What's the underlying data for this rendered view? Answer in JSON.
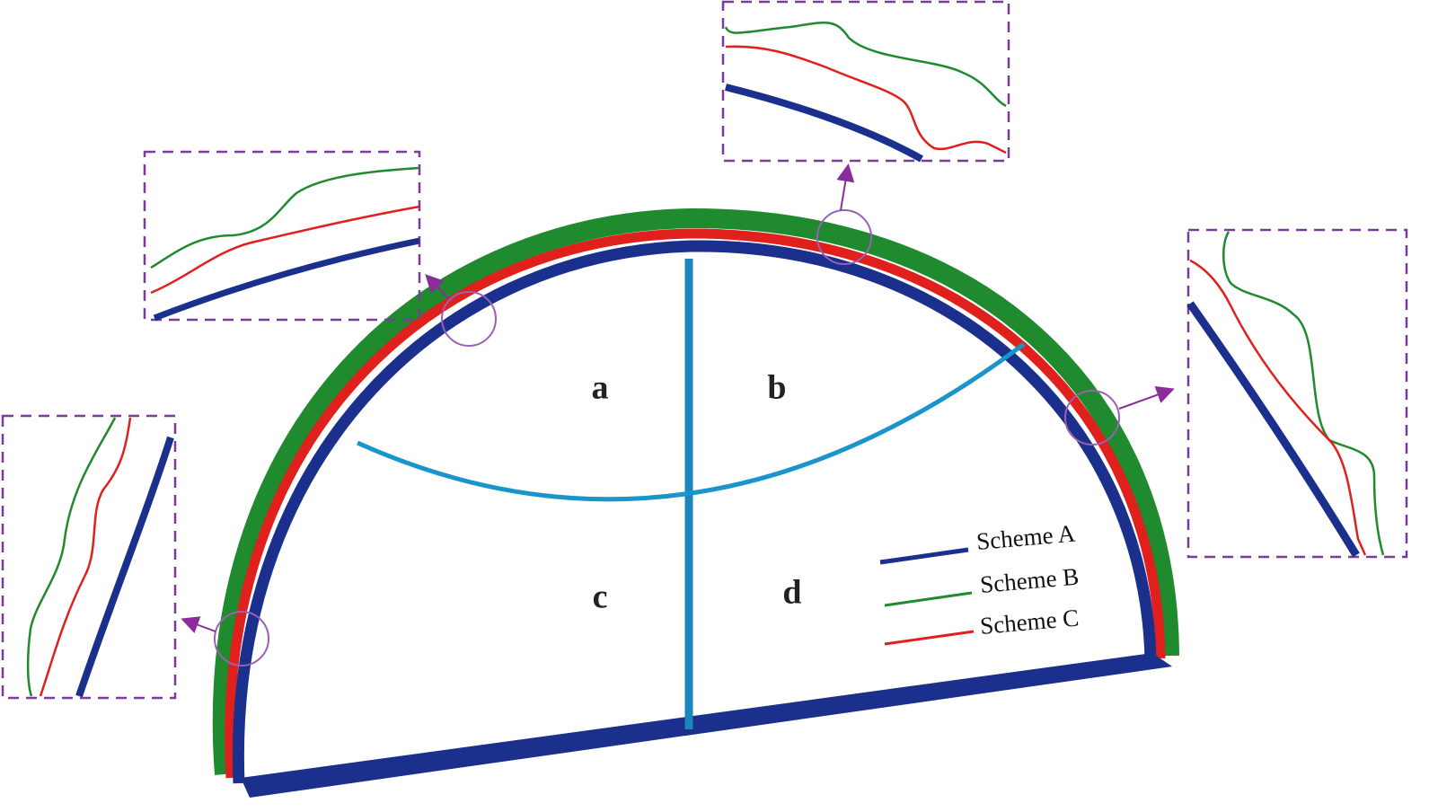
{
  "regions": [
    "a",
    "b",
    "c",
    "d"
  ],
  "legend": [
    {
      "name": "Scheme A",
      "color": "#1b2f8c"
    },
    {
      "name": "Scheme B",
      "color": "#1f8a2e"
    },
    {
      "name": "Scheme C",
      "color": "#e0201c"
    }
  ]
}
